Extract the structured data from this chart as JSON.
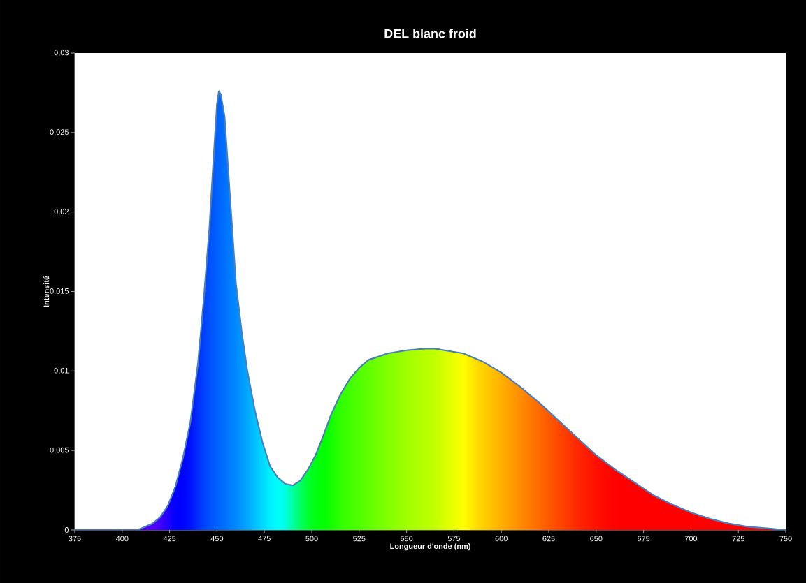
{
  "chart_data": {
    "type": "area",
    "title": "DEL blanc froid",
    "xlabel": "Longueur d'onde (nm)",
    "ylabel": "Intensité",
    "x": [
      375,
      400,
      408,
      412,
      416,
      420,
      424,
      428,
      432,
      436,
      440,
      443,
      446,
      448,
      450,
      451,
      452,
      454,
      456,
      458,
      460,
      463,
      466,
      470,
      474,
      478,
      482,
      486,
      490,
      494,
      498,
      502,
      506,
      510,
      515,
      520,
      525,
      530,
      540,
      550,
      560,
      565,
      570,
      580,
      590,
      600,
      610,
      620,
      630,
      640,
      650,
      660,
      670,
      680,
      690,
      700,
      710,
      720,
      730,
      740,
      750
    ],
    "series": [
      {
        "color": "#4a7ebb",
        "values": [
          0,
          0,
          0,
          0.0002,
          0.0004,
          0.0008,
          0.0015,
          0.0027,
          0.0045,
          0.0068,
          0.0105,
          0.0145,
          0.019,
          0.023,
          0.0268,
          0.0276,
          0.0274,
          0.026,
          0.0225,
          0.019,
          0.0155,
          0.0125,
          0.01,
          0.0075,
          0.0055,
          0.004,
          0.0033,
          0.0029,
          0.0028,
          0.0031,
          0.0038,
          0.0047,
          0.0059,
          0.0072,
          0.0085,
          0.0095,
          0.0102,
          0.0107,
          0.0111,
          0.0113,
          0.0114,
          0.0114,
          0.0113,
          0.0111,
          0.0106,
          0.0099,
          0.009,
          0.008,
          0.0069,
          0.0058,
          0.0047,
          0.0038,
          0.003,
          0.0022,
          0.0016,
          0.0011,
          0.0007,
          0.0004,
          0.0002,
          0.0001,
          0
        ],
        "colors": [
          "#5000ff",
          "#5000ff",
          "#5000ff",
          "#5000ff",
          "#5000ff",
          "#4000ff",
          "#2000ff",
          "#0000ff",
          "#0000ff",
          "#0010ff",
          "#0030ff",
          "#0040ff",
          "#0050ff",
          "#0058ff",
          "#0060ff",
          "#0064ff",
          "#0068ff",
          "#0070ff",
          "#0078ff",
          "#0080ff",
          "#0088ff",
          "#0098ff",
          "#00a8ff",
          "#00c0ff",
          "#00d8ff",
          "#00f0ff",
          "#00ffff",
          "#00ffe0",
          "#00ffa0",
          "#00ff60",
          "#00ff30",
          "#00ff10",
          "#00ff00",
          "#10ff00",
          "#30ff00",
          "#40ff00",
          "#50ff00",
          "#60ff00",
          "#80ff00",
          "#a0ff00",
          "#b8ff00",
          "#c0ff00",
          "#d8ff00",
          "#ffff00",
          "#ffd000",
          "#ffb000",
          "#ff8c00",
          "#ff6a00",
          "#ff4800",
          "#ff2800",
          "#ff1000",
          "#ff0000",
          "#ff0000",
          "#ff0000",
          "#ff0000",
          "#ff0000",
          "#ff0000",
          "#ff0000",
          "#ff0000",
          "#ff0000",
          "#ff0000"
        ]
      }
    ],
    "xlim": [
      375,
      750
    ],
    "ylim": [
      0,
      0.03
    ],
    "xticks": [
      375,
      400,
      425,
      450,
      475,
      500,
      525,
      550,
      575,
      600,
      625,
      650,
      675,
      700,
      725,
      750
    ],
    "yticks": [
      0,
      {
        "value": 0.005,
        "label": "0,005"
      },
      {
        "value": 0.01,
        "label": "0,01"
      },
      {
        "value": 0.015,
        "label": "0,015"
      },
      {
        "value": 0.02,
        "label": "0,02"
      },
      {
        "value": 0.025,
        "label": "0,025"
      },
      {
        "value": 0.03,
        "label": "0,03"
      }
    ],
    "grid": false
  }
}
